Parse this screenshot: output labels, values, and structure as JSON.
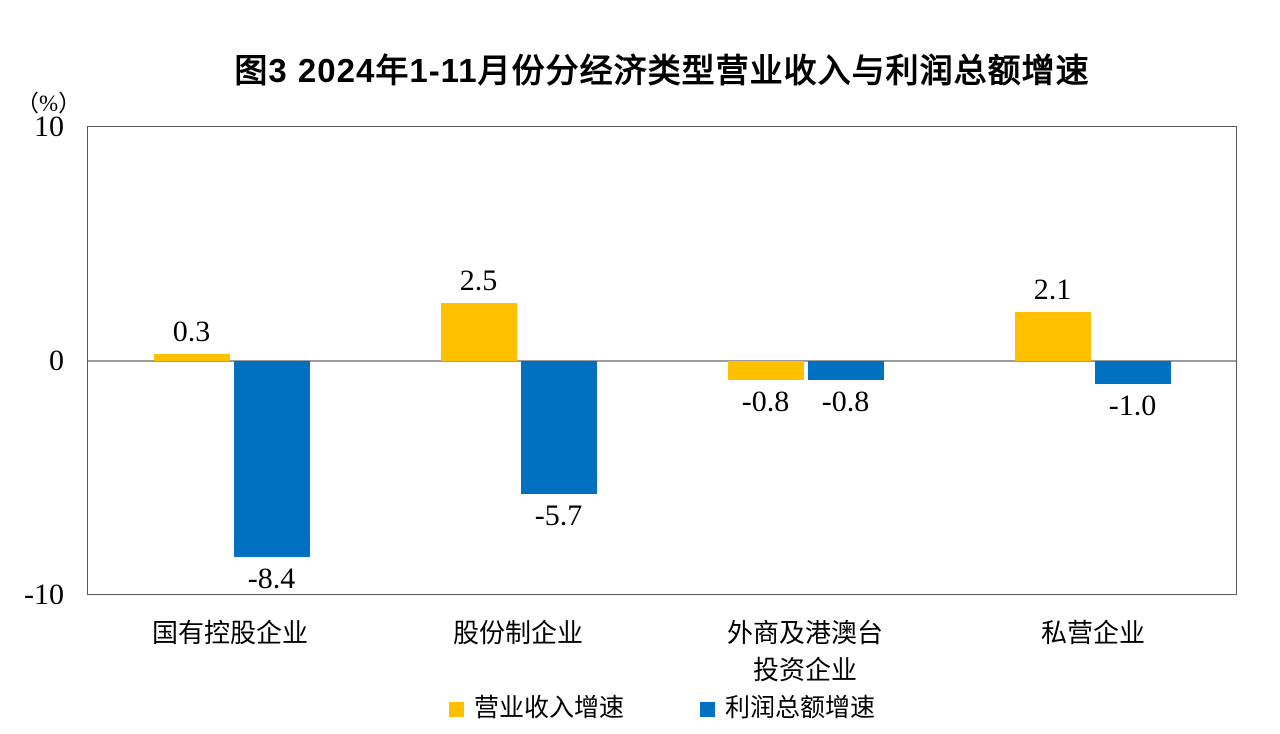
{
  "title": "图3  2024年1-11月份分经济类型营业收入与利润总额增速",
  "unit_label": "（%）",
  "y_axis": {
    "tick_top": "10",
    "tick_zero": "0",
    "tick_bottom": "-10"
  },
  "colors": {
    "revenue_bar": "#FFC000",
    "profit_bar": "#0070C0",
    "zero_line": "#9C9C9C",
    "plot_border": "#595959"
  },
  "chart_data": {
    "type": "bar",
    "title": "图3  2024年1-11月份分经济类型营业收入与利润总额增速",
    "ylabel": "（%）",
    "ylim": [
      -10,
      10
    ],
    "yticks": [
      10,
      0,
      -10
    ],
    "grid": "off",
    "legend_position": "bottom",
    "categories": [
      "国有控股企业",
      "股份制企业",
      "外商及港澳台\n投资企业",
      "私营企业"
    ],
    "series": [
      {
        "name": "营业收入增速",
        "color": "#FFC000",
        "values": [
          0.3,
          2.5,
          -0.8,
          2.1
        ]
      },
      {
        "name": "利润总额增速",
        "color": "#0070C0",
        "values": [
          -8.4,
          -5.7,
          -0.8,
          -1.0
        ]
      }
    ]
  },
  "legend": {
    "items": [
      {
        "label": "营业收入增速",
        "color": "#FFC000"
      },
      {
        "label": "利润总额增速",
        "color": "#0070C0"
      }
    ]
  }
}
